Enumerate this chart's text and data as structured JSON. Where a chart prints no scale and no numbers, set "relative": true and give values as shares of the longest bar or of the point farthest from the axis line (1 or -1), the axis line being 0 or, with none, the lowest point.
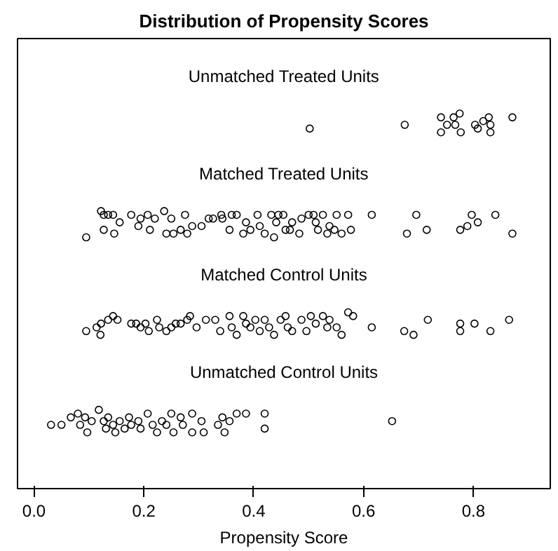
{
  "chart_data": {
    "type": "scatter",
    "title": "Distribution of Propensity Scores",
    "xlabel": "Propensity Score",
    "relative": true,
    "marker": "circle",
    "grid": false,
    "legend": false,
    "xlim": [
      -0.03,
      0.94
    ],
    "xticks": [
      {
        "value": 0,
        "label": "0.0"
      },
      {
        "value": 0.2,
        "label": "0.2"
      },
      {
        "value": 0.4,
        "label": "0.4"
      },
      {
        "value": 0.6,
        "label": "0.6"
      },
      {
        "value": 0.8,
        "label": "0.8"
      }
    ],
    "series": [
      {
        "name": "Unmatched Treated Units",
        "color": "#000000",
        "x": [
          0.502,
          0.675,
          0.741,
          0.741,
          0.752,
          0.764,
          0.775,
          0.767,
          0.777,
          0.803,
          0.808,
          0.818,
          0.828,
          0.831,
          0.831,
          0.871
        ],
        "values": [
          0.96,
          0.97,
          0.99,
          0.95,
          0.97,
          0.99,
          1.0,
          0.97,
          0.95,
          0.97,
          0.96,
          0.98,
          0.99,
          0.97,
          0.95,
          0.99
        ]
      },
      {
        "name": "Matched Treated Units",
        "color": "#000000",
        "x": [
          0.095,
          0.122,
          0.127,
          0.135,
          0.144,
          0.127,
          0.146,
          0.156,
          0.177,
          0.19,
          0.194,
          0.207,
          0.211,
          0.22,
          0.237,
          0.25,
          0.241,
          0.254,
          0.267,
          0.275,
          0.279,
          0.288,
          0.305,
          0.318,
          0.326,
          0.341,
          0.343,
          0.356,
          0.36,
          0.369,
          0.381,
          0.386,
          0.394,
          0.407,
          0.411,
          0.42,
          0.432,
          0.437,
          0.441,
          0.445,
          0.454,
          0.458,
          0.466,
          0.47,
          0.483,
          0.487,
          0.5,
          0.509,
          0.513,
          0.517,
          0.526,
          0.534,
          0.538,
          0.547,
          0.551,
          0.56,
          0.572,
          0.577,
          0.615,
          0.679,
          0.696,
          0.715,
          0.776,
          0.789,
          0.797,
          0.808,
          0.84,
          0.871
        ],
        "values": [
          0.67,
          0.74,
          0.73,
          0.73,
          0.73,
          0.69,
          0.68,
          0.71,
          0.73,
          0.7,
          0.72,
          0.73,
          0.69,
          0.72,
          0.74,
          0.72,
          0.68,
          0.68,
          0.69,
          0.73,
          0.68,
          0.7,
          0.7,
          0.72,
          0.72,
          0.73,
          0.72,
          0.69,
          0.73,
          0.73,
          0.68,
          0.71,
          0.69,
          0.73,
          0.7,
          0.68,
          0.73,
          0.67,
          0.71,
          0.73,
          0.73,
          0.69,
          0.69,
          0.71,
          0.68,
          0.72,
          0.73,
          0.73,
          0.71,
          0.69,
          0.73,
          0.68,
          0.7,
          0.69,
          0.73,
          0.68,
          0.73,
          0.69,
          0.73,
          0.68,
          0.73,
          0.69,
          0.69,
          0.7,
          0.73,
          0.71,
          0.73,
          0.68
        ]
      },
      {
        "name": "Matched Control Units",
        "color": "#000000",
        "x": [
          0.095,
          0.114,
          0.122,
          0.121,
          0.135,
          0.144,
          0.152,
          0.177,
          0.186,
          0.194,
          0.203,
          0.209,
          0.224,
          0.228,
          0.241,
          0.25,
          0.258,
          0.267,
          0.279,
          0.284,
          0.296,
          0.313,
          0.33,
          0.339,
          0.356,
          0.36,
          0.369,
          0.381,
          0.386,
          0.394,
          0.403,
          0.411,
          0.42,
          0.428,
          0.437,
          0.449,
          0.458,
          0.462,
          0.47,
          0.487,
          0.496,
          0.504,
          0.513,
          0.526,
          0.534,
          0.538,
          0.551,
          0.56,
          0.572,
          0.581,
          0.615,
          0.674,
          0.691,
          0.717,
          0.776,
          0.776,
          0.802,
          0.831,
          0.865
        ],
        "values": [
          0.42,
          0.43,
          0.44,
          0.41,
          0.45,
          0.46,
          0.45,
          0.44,
          0.44,
          0.43,
          0.44,
          0.42,
          0.45,
          0.43,
          0.42,
          0.43,
          0.44,
          0.44,
          0.45,
          0.46,
          0.43,
          0.45,
          0.45,
          0.42,
          0.46,
          0.43,
          0.41,
          0.46,
          0.44,
          0.43,
          0.45,
          0.42,
          0.45,
          0.43,
          0.41,
          0.45,
          0.46,
          0.43,
          0.42,
          0.45,
          0.42,
          0.46,
          0.44,
          0.46,
          0.43,
          0.45,
          0.43,
          0.41,
          0.47,
          0.46,
          0.43,
          0.42,
          0.41,
          0.45,
          0.44,
          0.42,
          0.44,
          0.42,
          0.45
        ]
      },
      {
        "name": "Unmatched Control Units",
        "color": "#000000",
        "x": [
          0.031,
          0.05,
          0.067,
          0.08,
          0.084,
          0.093,
          0.097,
          0.105,
          0.118,
          0.127,
          0.131,
          0.135,
          0.144,
          0.148,
          0.156,
          0.165,
          0.173,
          0.177,
          0.19,
          0.194,
          0.207,
          0.216,
          0.224,
          0.233,
          0.241,
          0.25,
          0.254,
          0.267,
          0.271,
          0.288,
          0.288,
          0.305,
          0.309,
          0.335,
          0.343,
          0.347,
          0.356,
          0.369,
          0.386,
          0.42,
          0.42,
          0.652
        ],
        "values": [
          0.17,
          0.17,
          0.19,
          0.2,
          0.17,
          0.19,
          0.15,
          0.18,
          0.21,
          0.18,
          0.16,
          0.19,
          0.17,
          0.15,
          0.18,
          0.16,
          0.19,
          0.17,
          0.18,
          0.16,
          0.2,
          0.17,
          0.15,
          0.18,
          0.17,
          0.2,
          0.15,
          0.19,
          0.17,
          0.2,
          0.15,
          0.18,
          0.15,
          0.17,
          0.19,
          0.15,
          0.18,
          0.2,
          0.2,
          0.2,
          0.16,
          0.18
        ]
      }
    ]
  }
}
